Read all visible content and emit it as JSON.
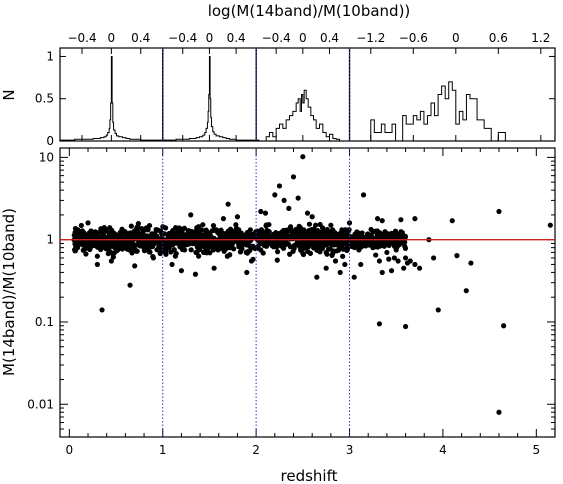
{
  "chart_data": [
    {
      "type": "histogram",
      "panel": "hist-z0-1",
      "title": "log(M(14band)/M(10band))",
      "ylabel": "N",
      "xlim": [
        -0.7,
        0.7
      ],
      "ylim": [
        0,
        1.1
      ],
      "x_ticks": [
        -0.4,
        0,
        0.4
      ],
      "x_tick_labels": [
        "−0.4",
        "0",
        "0.4"
      ],
      "y_ticks": [
        0,
        0.5,
        1
      ],
      "y_tick_labels": [
        "0",
        "0.5",
        "1"
      ],
      "bins": [
        [
          -0.7,
          0.01
        ],
        [
          -0.6,
          0.01
        ],
        [
          -0.5,
          0.02
        ],
        [
          -0.4,
          0.02
        ],
        [
          -0.3,
          0.02
        ],
        [
          -0.25,
          0.03
        ],
        [
          -0.2,
          0.03
        ],
        [
          -0.15,
          0.04
        ],
        [
          -0.1,
          0.05
        ],
        [
          -0.07,
          0.07
        ],
        [
          -0.05,
          0.1
        ],
        [
          -0.03,
          0.15
        ],
        [
          -0.02,
          0.25
        ],
        [
          -0.01,
          0.45
        ],
        [
          0,
          1.0
        ],
        [
          0.01,
          0.45
        ],
        [
          0.02,
          0.22
        ],
        [
          0.03,
          0.13
        ],
        [
          0.05,
          0.09
        ],
        [
          0.07,
          0.06
        ],
        [
          0.1,
          0.05
        ],
        [
          0.15,
          0.04
        ],
        [
          0.2,
          0.03
        ],
        [
          0.25,
          0.02
        ],
        [
          0.3,
          0.02
        ],
        [
          0.4,
          0.01
        ],
        [
          0.5,
          0.01
        ],
        [
          0.6,
          0.01
        ],
        [
          0.7,
          0.01
        ]
      ]
    },
    {
      "type": "histogram",
      "panel": "hist-z1-2",
      "xlim": [
        -0.7,
        0.7
      ],
      "ylim": [
        0,
        1.1
      ],
      "x_ticks": [
        -0.4,
        0,
        0.4
      ],
      "x_tick_labels": [
        "−0.4",
        "0",
        "0.4"
      ],
      "bins": [
        [
          -0.7,
          0.01
        ],
        [
          -0.6,
          0.01
        ],
        [
          -0.5,
          0.02
        ],
        [
          -0.4,
          0.02
        ],
        [
          -0.3,
          0.03
        ],
        [
          -0.25,
          0.03
        ],
        [
          -0.2,
          0.04
        ],
        [
          -0.15,
          0.05
        ],
        [
          -0.1,
          0.07
        ],
        [
          -0.07,
          0.1
        ],
        [
          -0.05,
          0.15
        ],
        [
          -0.03,
          0.22
        ],
        [
          -0.02,
          0.35
        ],
        [
          -0.01,
          0.55
        ],
        [
          0,
          1.0
        ],
        [
          0.01,
          0.5
        ],
        [
          0.02,
          0.28
        ],
        [
          0.03,
          0.17
        ],
        [
          0.05,
          0.11
        ],
        [
          0.07,
          0.08
        ],
        [
          0.1,
          0.06
        ],
        [
          0.15,
          0.05
        ],
        [
          0.2,
          0.04
        ],
        [
          0.25,
          0.03
        ],
        [
          0.3,
          0.02
        ],
        [
          0.4,
          0.01
        ],
        [
          0.5,
          0.01
        ],
        [
          0.6,
          0.01
        ],
        [
          0.7,
          0.01
        ]
      ]
    },
    {
      "type": "histogram",
      "panel": "hist-z2-3",
      "xlim": [
        -0.7,
        0.7
      ],
      "ylim": [
        0,
        1.1
      ],
      "x_ticks": [
        -0.4,
        0,
        0.4
      ],
      "x_tick_labels": [
        "−0.4",
        "0",
        "0.4"
      ],
      "bins": [
        [
          -0.7,
          0.0
        ],
        [
          -0.55,
          0.05
        ],
        [
          -0.5,
          0.1
        ],
        [
          -0.45,
          0.05
        ],
        [
          -0.4,
          0.15
        ],
        [
          -0.35,
          0.2
        ],
        [
          -0.3,
          0.15
        ],
        [
          -0.25,
          0.25
        ],
        [
          -0.2,
          0.3
        ],
        [
          -0.15,
          0.35
        ],
        [
          -0.1,
          0.45
        ],
        [
          -0.07,
          0.5
        ],
        [
          -0.04,
          0.35
        ],
        [
          -0.02,
          0.55
        ],
        [
          0,
          0.45
        ],
        [
          0.02,
          0.6
        ],
        [
          0.05,
          0.5
        ],
        [
          0.08,
          0.4
        ],
        [
          0.12,
          0.3
        ],
        [
          0.16,
          0.25
        ],
        [
          0.2,
          0.15
        ],
        [
          0.25,
          0.2
        ],
        [
          0.3,
          0.1
        ],
        [
          0.35,
          0.05
        ],
        [
          0.4,
          0.08
        ],
        [
          0.45,
          0.03
        ],
        [
          0.5,
          0.02
        ],
        [
          0.55,
          0.0
        ],
        [
          0.6,
          0.0
        ]
      ]
    },
    {
      "type": "histogram",
      "panel": "hist-z3plus",
      "xlim": [
        -1.5,
        1.4
      ],
      "ylim": [
        0,
        1.1
      ],
      "x_ticks": [
        -1.2,
        -0.6,
        0,
        0.6,
        1.2
      ],
      "x_tick_labels": [
        "−1.2",
        "−0.6",
        "0",
        "0.6",
        "1.2"
      ],
      "bins": [
        [
          -1.3,
          0.0
        ],
        [
          -1.2,
          0.25
        ],
        [
          -1.15,
          0.1
        ],
        [
          -1.05,
          0.2
        ],
        [
          -1.0,
          0.1
        ],
        [
          -0.9,
          0.2
        ],
        [
          -0.85,
          0.0
        ],
        [
          -0.75,
          0.3
        ],
        [
          -0.7,
          0.2
        ],
        [
          -0.6,
          0.3
        ],
        [
          -0.55,
          0.25
        ],
        [
          -0.5,
          0.35
        ],
        [
          -0.45,
          0.2
        ],
        [
          -0.4,
          0.3
        ],
        [
          -0.35,
          0.45
        ],
        [
          -0.3,
          0.3
        ],
        [
          -0.25,
          0.55
        ],
        [
          -0.2,
          0.65
        ],
        [
          -0.15,
          0.5
        ],
        [
          -0.1,
          0.7
        ],
        [
          -0.05,
          0.6
        ],
        [
          0,
          0.2
        ],
        [
          0.05,
          0.35
        ],
        [
          0.1,
          0.25
        ],
        [
          0.15,
          0.55
        ],
        [
          0.2,
          0.5
        ],
        [
          0.3,
          0.25
        ],
        [
          0.4,
          0.15
        ],
        [
          0.5,
          0.0
        ],
        [
          0.6,
          0.1
        ],
        [
          0.7,
          0.0
        ],
        [
          1.0,
          0.0
        ]
      ]
    },
    {
      "type": "scatter",
      "panel": "main",
      "xlabel": "redshift",
      "ylabel": "M(14band)/M(10band)",
      "xlim": [
        -0.1,
        5.2
      ],
      "ylim": [
        0.004,
        13
      ],
      "yscale": "log",
      "x_ticks": [
        0,
        1,
        2,
        3,
        4,
        5
      ],
      "x_tick_labels": [
        "0",
        "1",
        "2",
        "3",
        "4",
        "5"
      ],
      "y_ticks": [
        0.01,
        0.1,
        1,
        10
      ],
      "y_tick_labels": [
        "0.01",
        "0.1",
        "1",
        "10"
      ],
      "reference_line": {
        "y": 1,
        "color": "#cc2222"
      },
      "bin_edges_dotted": [
        1,
        2,
        3
      ],
      "bin_edge_color": "#3333cc",
      "dense_cloud": {
        "x_range": [
          0.05,
          3.6
        ],
        "y_center": 1.0,
        "log10_scatter": 0.11,
        "count": 1400
      },
      "points": [
        [
          0.35,
          0.14
        ],
        [
          0.45,
          0.55
        ],
        [
          0.65,
          0.28
        ],
        [
          0.7,
          0.48
        ],
        [
          0.3,
          0.5
        ],
        [
          0.2,
          1.6
        ],
        [
          0.9,
          0.6
        ],
        [
          1.1,
          0.5
        ],
        [
          1.2,
          0.42
        ],
        [
          1.35,
          0.38
        ],
        [
          1.55,
          0.45
        ],
        [
          1.65,
          1.8
        ],
        [
          1.7,
          2.7
        ],
        [
          1.3,
          2.0
        ],
        [
          1.8,
          1.9
        ],
        [
          1.9,
          0.4
        ],
        [
          1.95,
          0.55
        ],
        [
          2.05,
          2.2
        ],
        [
          2.1,
          2.1
        ],
        [
          2.2,
          3.5
        ],
        [
          2.25,
          4.5
        ],
        [
          2.3,
          3.0
        ],
        [
          2.35,
          2.4
        ],
        [
          2.45,
          3.2
        ],
        [
          2.5,
          10.2
        ],
        [
          2.4,
          5.8
        ],
        [
          2.55,
          2.1
        ],
        [
          2.6,
          1.9
        ],
        [
          2.65,
          0.35
        ],
        [
          2.75,
          0.45
        ],
        [
          2.8,
          1.5
        ],
        [
          2.85,
          0.55
        ],
        [
          2.9,
          0.4
        ],
        [
          2.95,
          0.5
        ],
        [
          3.0,
          1.6
        ],
        [
          3.05,
          0.35
        ],
        [
          3.1,
          0.75
        ],
        [
          3.12,
          0.5
        ],
        [
          3.15,
          3.5
        ],
        [
          3.2,
          1.15
        ],
        [
          3.22,
          0.9
        ],
        [
          3.25,
          0.8
        ],
        [
          3.28,
          0.65
        ],
        [
          3.3,
          1.8
        ],
        [
          3.32,
          0.55
        ],
        [
          3.35,
          0.4
        ],
        [
          3.38,
          1.25
        ],
        [
          3.4,
          0.7
        ],
        [
          3.42,
          0.58
        ],
        [
          3.45,
          0.42
        ],
        [
          3.48,
          0.6
        ],
        [
          3.5,
          0.75
        ],
        [
          3.52,
          0.55
        ],
        [
          3.55,
          1.25
        ],
        [
          3.58,
          0.45
        ],
        [
          3.6,
          0.6
        ],
        [
          3.62,
          0.52
        ],
        [
          3.65,
          0.55
        ],
        [
          3.7,
          0.5
        ],
        [
          3.75,
          0.45
        ],
        [
          3.32,
          0.095
        ],
        [
          3.6,
          0.088
        ],
        [
          3.55,
          1.75
        ],
        [
          3.7,
          1.8
        ],
        [
          3.85,
          1.0
        ],
        [
          3.9,
          0.6
        ],
        [
          3.95,
          0.14
        ],
        [
          4.1,
          1.7
        ],
        [
          4.15,
          0.64
        ],
        [
          4.25,
          0.24
        ],
        [
          4.6,
          0.008
        ],
        [
          4.6,
          2.2
        ],
        [
          4.65,
          0.09
        ],
        [
          4.3,
          0.52
        ],
        [
          3.35,
          1.7
        ],
        [
          5.15,
          1.5
        ]
      ]
    }
  ]
}
